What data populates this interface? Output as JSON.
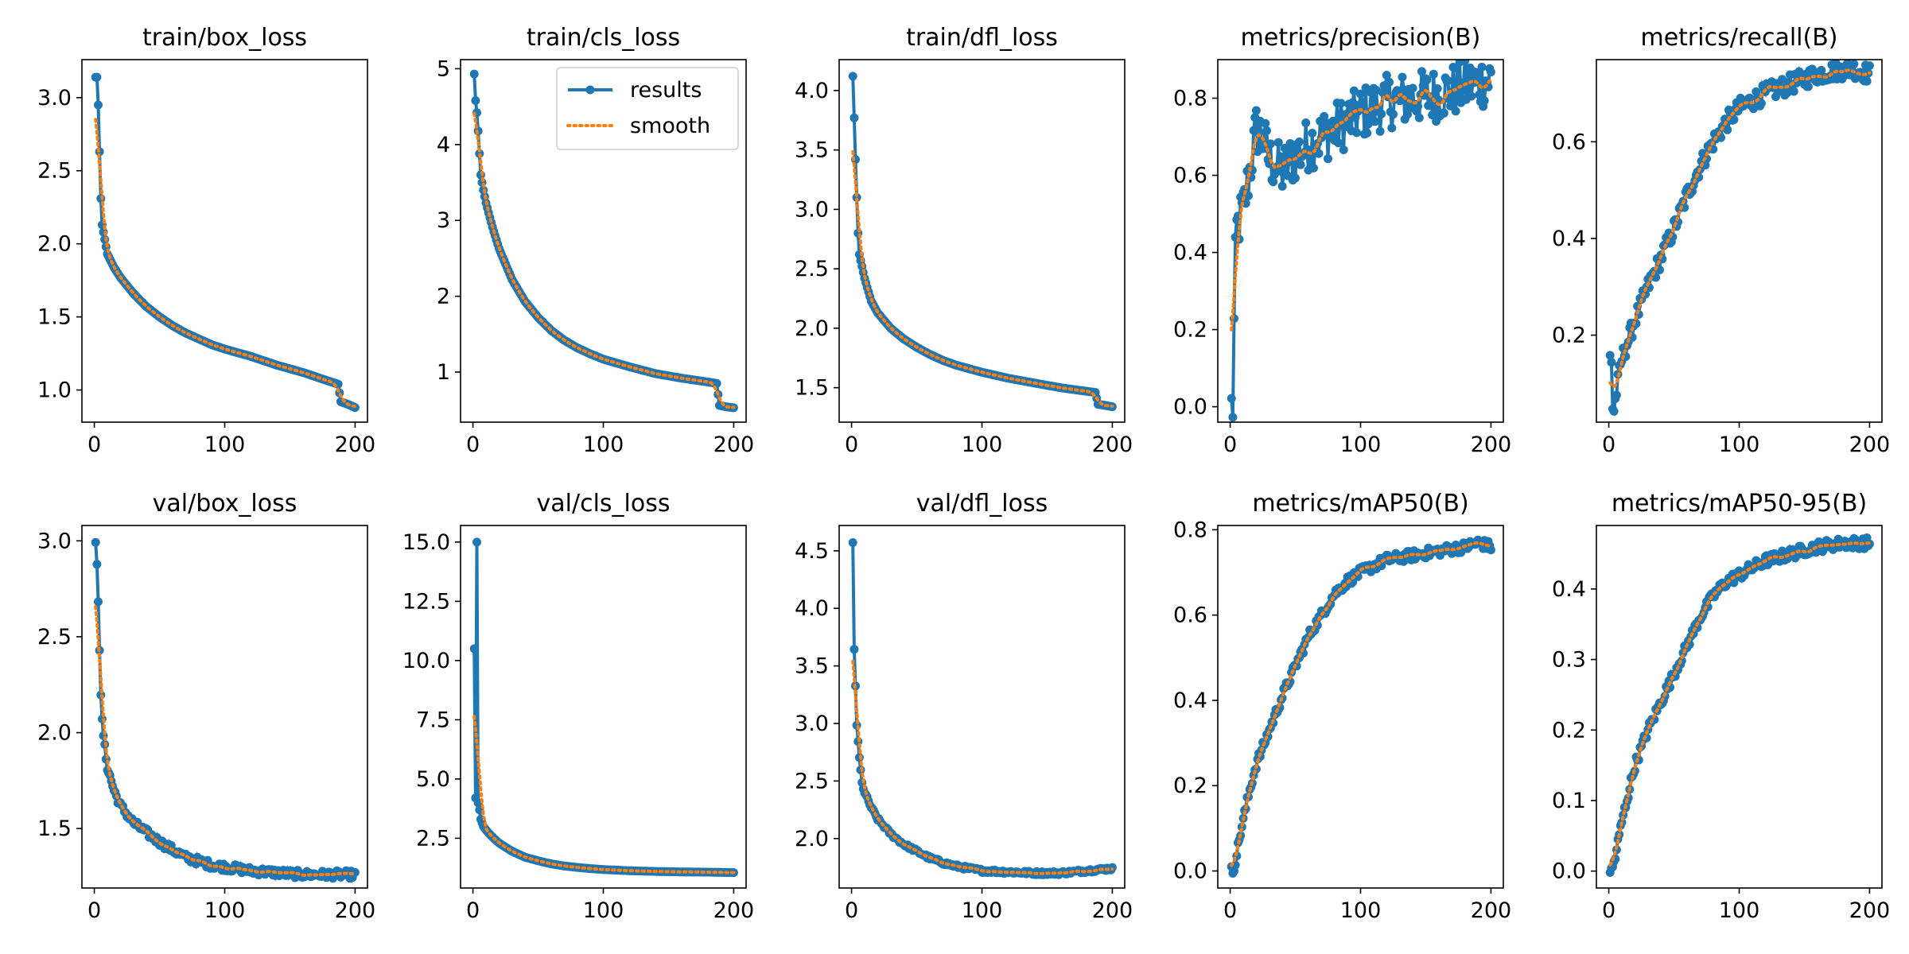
{
  "colors": {
    "results": "#1f77b4",
    "smooth": "#ff7f0e",
    "axes": "#000000",
    "background": "#ffffff"
  },
  "legend": {
    "entries": [
      "results",
      "smooth"
    ],
    "placement": "upper-right of panel 2"
  },
  "chart_data": [
    {
      "type": "line",
      "title": "train/box_loss",
      "xlabel": "",
      "ylabel": "",
      "xlim": [
        -9.5,
        209.5
      ],
      "ylim": [
        0.78,
        3.26
      ],
      "x_ticks": [
        0,
        100,
        200
      ],
      "y_ticks": [
        1.0,
        1.5,
        2.0,
        2.5,
        3.0
      ],
      "y_tick_labels": [
        "1.0",
        "1.5",
        "2.0",
        "2.5",
        "3.0"
      ],
      "grid": false,
      "anchors": [
        [
          1,
          3.14
        ],
        [
          2,
          3.14
        ],
        [
          3,
          2.95
        ],
        [
          4,
          2.63
        ],
        [
          5,
          2.31
        ],
        [
          6,
          2.13
        ],
        [
          8,
          2.03
        ],
        [
          10,
          1.93
        ],
        [
          15,
          1.84
        ],
        [
          20,
          1.77
        ],
        [
          30,
          1.66
        ],
        [
          40,
          1.57
        ],
        [
          50,
          1.5
        ],
        [
          60,
          1.44
        ],
        [
          70,
          1.39
        ],
        [
          80,
          1.35
        ],
        [
          90,
          1.31
        ],
        [
          100,
          1.28
        ],
        [
          120,
          1.23
        ],
        [
          140,
          1.17
        ],
        [
          160,
          1.12
        ],
        [
          180,
          1.06
        ],
        [
          187,
          1.04
        ],
        [
          189,
          0.92
        ],
        [
          195,
          0.9
        ],
        [
          200,
          0.88
        ]
      ],
      "series": [
        {
          "name": "results",
          "x_range": [
            1,
            200
          ]
        },
        {
          "name": "smooth"
        }
      ]
    },
    {
      "type": "line",
      "title": "train/cls_loss",
      "xlabel": "",
      "ylabel": "",
      "xlim": [
        -9.5,
        209.5
      ],
      "ylim": [
        0.34,
        5.12
      ],
      "x_ticks": [
        0,
        100,
        200
      ],
      "y_ticks": [
        1,
        2,
        3,
        4,
        5
      ],
      "y_tick_labels": [
        "1",
        "2",
        "3",
        "4",
        "5"
      ],
      "grid": false,
      "anchors": [
        [
          1,
          4.93
        ],
        [
          2,
          4.58
        ],
        [
          3,
          4.42
        ],
        [
          4,
          4.18
        ],
        [
          5,
          3.88
        ],
        [
          6,
          3.6
        ],
        [
          8,
          3.4
        ],
        [
          10,
          3.23
        ],
        [
          15,
          2.91
        ],
        [
          20,
          2.63
        ],
        [
          30,
          2.22
        ],
        [
          40,
          1.93
        ],
        [
          50,
          1.72
        ],
        [
          60,
          1.55
        ],
        [
          70,
          1.42
        ],
        [
          80,
          1.32
        ],
        [
          90,
          1.24
        ],
        [
          100,
          1.17
        ],
        [
          120,
          1.07
        ],
        [
          140,
          0.98
        ],
        [
          160,
          0.92
        ],
        [
          180,
          0.87
        ],
        [
          187,
          0.85
        ],
        [
          189,
          0.56
        ],
        [
          195,
          0.54
        ],
        [
          200,
          0.53
        ]
      ],
      "series": [
        {
          "name": "results",
          "x_range": [
            1,
            200
          ]
        },
        {
          "name": "smooth"
        }
      ]
    },
    {
      "type": "line",
      "title": "train/dfl_loss",
      "xlabel": "",
      "ylabel": "",
      "xlim": [
        -9.5,
        209.5
      ],
      "ylim": [
        1.21,
        4.26
      ],
      "x_ticks": [
        0,
        100,
        200
      ],
      "y_ticks": [
        1.5,
        2.0,
        2.5,
        3.0,
        3.5,
        4.0
      ],
      "y_tick_labels": [
        "1.5",
        "2.0",
        "2.5",
        "3.0",
        "3.5",
        "4.0"
      ],
      "grid": false,
      "anchors": [
        [
          1,
          4.12
        ],
        [
          2,
          3.77
        ],
        [
          3,
          3.42
        ],
        [
          4,
          3.1
        ],
        [
          5,
          2.8
        ],
        [
          6,
          2.62
        ],
        [
          8,
          2.52
        ],
        [
          10,
          2.42
        ],
        [
          15,
          2.23
        ],
        [
          20,
          2.13
        ],
        [
          30,
          2.0
        ],
        [
          40,
          1.91
        ],
        [
          50,
          1.84
        ],
        [
          60,
          1.78
        ],
        [
          70,
          1.73
        ],
        [
          80,
          1.69
        ],
        [
          90,
          1.66
        ],
        [
          100,
          1.63
        ],
        [
          120,
          1.58
        ],
        [
          140,
          1.54
        ],
        [
          160,
          1.5
        ],
        [
          180,
          1.47
        ],
        [
          187,
          1.46
        ],
        [
          189,
          1.36
        ],
        [
          195,
          1.35
        ],
        [
          200,
          1.34
        ]
      ],
      "series": [
        {
          "name": "results",
          "x_range": [
            1,
            200
          ]
        },
        {
          "name": "smooth"
        }
      ]
    },
    {
      "type": "line",
      "title": "metrics/precision(B)",
      "xlabel": "",
      "ylabel": "",
      "xlim": [
        -9.5,
        209.5
      ],
      "ylim": [
        -0.04,
        0.9
      ],
      "x_ticks": [
        0,
        100,
        200
      ],
      "y_ticks": [
        0.0,
        0.2,
        0.4,
        0.6,
        0.8
      ],
      "y_tick_labels": [
        "0.0",
        "0.2",
        "0.4",
        "0.6",
        "0.8"
      ],
      "grid": false,
      "anchors": [
        [
          1,
          0.0
        ],
        [
          2,
          0.0
        ],
        [
          3,
          0.21
        ],
        [
          4,
          0.37
        ],
        [
          5,
          0.46
        ],
        [
          7,
          0.48
        ],
        [
          10,
          0.51
        ],
        [
          15,
          0.61
        ],
        [
          20,
          0.72
        ],
        [
          25,
          0.7
        ],
        [
          30,
          0.64
        ],
        [
          40,
          0.61
        ],
        [
          50,
          0.65
        ],
        [
          60,
          0.68
        ],
        [
          70,
          0.7
        ],
        [
          80,
          0.72
        ],
        [
          90,
          0.74
        ],
        [
          100,
          0.76
        ],
        [
          120,
          0.79
        ],
        [
          140,
          0.8
        ],
        [
          160,
          0.81
        ],
        [
          180,
          0.83
        ],
        [
          200,
          0.85
        ]
      ],
      "noise": 0.07,
      "series": [
        {
          "name": "results",
          "x_range": [
            1,
            200
          ]
        },
        {
          "name": "smooth"
        }
      ]
    },
    {
      "type": "line",
      "title": "metrics/recall(B)",
      "xlabel": "",
      "ylabel": "",
      "xlim": [
        -9.5,
        209.5
      ],
      "ylim": [
        0.02,
        0.77
      ],
      "x_ticks": [
        0,
        100,
        200
      ],
      "y_ticks": [
        0.2,
        0.4,
        0.6
      ],
      "y_tick_labels": [
        "0.2",
        "0.4",
        "0.6"
      ],
      "grid": false,
      "anchors": [
        [
          1,
          0.155
        ],
        [
          2,
          0.15
        ],
        [
          3,
          0.05
        ],
        [
          4,
          0.045
        ],
        [
          5,
          0.065
        ],
        [
          8,
          0.12
        ],
        [
          10,
          0.15
        ],
        [
          15,
          0.19
        ],
        [
          20,
          0.23
        ],
        [
          30,
          0.3
        ],
        [
          40,
          0.36
        ],
        [
          50,
          0.42
        ],
        [
          60,
          0.49
        ],
        [
          70,
          0.55
        ],
        [
          80,
          0.6
        ],
        [
          90,
          0.64
        ],
        [
          100,
          0.67
        ],
        [
          120,
          0.7
        ],
        [
          140,
          0.72
        ],
        [
          160,
          0.74
        ],
        [
          180,
          0.75
        ],
        [
          190,
          0.75
        ],
        [
          200,
          0.74
        ]
      ],
      "noise": 0.02,
      "series": [
        {
          "name": "results",
          "x_range": [
            1,
            200
          ]
        },
        {
          "name": "smooth"
        }
      ]
    },
    {
      "type": "line",
      "title": "val/box_loss",
      "xlabel": "",
      "ylabel": "",
      "xlim": [
        -9.5,
        209.5
      ],
      "ylim": [
        1.19,
        3.08
      ],
      "x_ticks": [
        0,
        100,
        200
      ],
      "y_ticks": [
        1.5,
        2.0,
        2.5,
        3.0
      ],
      "y_tick_labels": [
        "1.5",
        "2.0",
        "2.5",
        "3.0"
      ],
      "grid": false,
      "anchors": [
        [
          1,
          2.98
        ],
        [
          2,
          2.89
        ],
        [
          3,
          2.7
        ],
        [
          4,
          2.44
        ],
        [
          5,
          2.18
        ],
        [
          6,
          2.06
        ],
        [
          8,
          1.92
        ],
        [
          10,
          1.82
        ],
        [
          15,
          1.7
        ],
        [
          20,
          1.62
        ],
        [
          30,
          1.53
        ],
        [
          40,
          1.48
        ],
        [
          50,
          1.43
        ],
        [
          60,
          1.39
        ],
        [
          70,
          1.35
        ],
        [
          80,
          1.33
        ],
        [
          90,
          1.31
        ],
        [
          100,
          1.3
        ],
        [
          120,
          1.28
        ],
        [
          140,
          1.27
        ],
        [
          160,
          1.26
        ],
        [
          180,
          1.26
        ],
        [
          200,
          1.26
        ]
      ],
      "noise": 0.02,
      "series": [
        {
          "name": "results",
          "x_range": [
            1,
            200
          ]
        },
        {
          "name": "smooth"
        }
      ]
    },
    {
      "type": "line",
      "title": "val/cls_loss",
      "xlabel": "",
      "ylabel": "",
      "xlim": [
        -9.5,
        209.5
      ],
      "ylim": [
        0.4,
        15.7
      ],
      "x_ticks": [
        0,
        100,
        200
      ],
      "y_ticks": [
        2.5,
        5.0,
        7.5,
        10.0,
        12.5,
        15.0
      ],
      "y_tick_labels": [
        "2.5",
        "5.0",
        "7.5",
        "10.0",
        "12.5",
        "15.0"
      ],
      "grid": false,
      "anchors": [
        [
          1,
          10.5
        ],
        [
          2,
          4.2
        ],
        [
          3,
          15.0
        ],
        [
          4,
          4.0
        ],
        [
          5,
          3.7
        ],
        [
          6,
          3.3
        ],
        [
          8,
          3.0
        ],
        [
          10,
          2.85
        ],
        [
          15,
          2.55
        ],
        [
          20,
          2.3
        ],
        [
          30,
          1.95
        ],
        [
          40,
          1.7
        ],
        [
          50,
          1.55
        ],
        [
          60,
          1.42
        ],
        [
          70,
          1.33
        ],
        [
          80,
          1.27
        ],
        [
          90,
          1.22
        ],
        [
          100,
          1.18
        ],
        [
          120,
          1.13
        ],
        [
          140,
          1.1
        ],
        [
          160,
          1.08
        ],
        [
          180,
          1.07
        ],
        [
          200,
          1.05
        ]
      ],
      "series": [
        {
          "name": "results",
          "x_range": [
            1,
            200
          ]
        },
        {
          "name": "smooth"
        }
      ]
    },
    {
      "type": "line",
      "title": "val/dfl_loss",
      "xlabel": "",
      "ylabel": "",
      "xlim": [
        -9.5,
        209.5
      ],
      "ylim": [
        1.57,
        4.72
      ],
      "x_ticks": [
        0,
        100,
        200
      ],
      "y_ticks": [
        2.0,
        2.5,
        3.0,
        3.5,
        4.0,
        4.5
      ],
      "y_tick_labels": [
        "2.0",
        "2.5",
        "3.0",
        "3.5",
        "4.0",
        "4.5"
      ],
      "grid": false,
      "anchors": [
        [
          1,
          4.56
        ],
        [
          2,
          3.64
        ],
        [
          3,
          3.33
        ],
        [
          4,
          2.99
        ],
        [
          5,
          2.83
        ],
        [
          6,
          2.7
        ],
        [
          8,
          2.48
        ],
        [
          10,
          2.4
        ],
        [
          15,
          2.27
        ],
        [
          20,
          2.17
        ],
        [
          30,
          2.04
        ],
        [
          40,
          1.95
        ],
        [
          50,
          1.89
        ],
        [
          60,
          1.83
        ],
        [
          70,
          1.79
        ],
        [
          80,
          1.76
        ],
        [
          90,
          1.74
        ],
        [
          100,
          1.72
        ],
        [
          120,
          1.71
        ],
        [
          140,
          1.7
        ],
        [
          160,
          1.7
        ],
        [
          180,
          1.72
        ],
        [
          200,
          1.74
        ]
      ],
      "noise": 0.015,
      "series": [
        {
          "name": "results",
          "x_range": [
            1,
            200
          ]
        },
        {
          "name": "smooth"
        }
      ]
    },
    {
      "type": "line",
      "title": "metrics/mAP50(B)",
      "xlabel": "",
      "ylabel": "",
      "xlim": [
        -9.5,
        209.5
      ],
      "ylim": [
        -0.04,
        0.81
      ],
      "x_ticks": [
        0,
        100,
        200
      ],
      "y_ticks": [
        0.0,
        0.2,
        0.4,
        0.6,
        0.8
      ],
      "y_tick_labels": [
        "0.0",
        "0.2",
        "0.4",
        "0.6",
        "0.8"
      ],
      "grid": false,
      "anchors": [
        [
          1,
          0.0
        ],
        [
          2,
          0.0
        ],
        [
          3,
          0.01
        ],
        [
          5,
          0.04
        ],
        [
          8,
          0.09
        ],
        [
          10,
          0.12
        ],
        [
          15,
          0.19
        ],
        [
          20,
          0.25
        ],
        [
          30,
          0.33
        ],
        [
          40,
          0.41
        ],
        [
          50,
          0.48
        ],
        [
          60,
          0.55
        ],
        [
          70,
          0.6
        ],
        [
          80,
          0.65
        ],
        [
          90,
          0.68
        ],
        [
          100,
          0.7
        ],
        [
          120,
          0.73
        ],
        [
          140,
          0.74
        ],
        [
          160,
          0.75
        ],
        [
          180,
          0.76
        ],
        [
          190,
          0.77
        ],
        [
          200,
          0.76
        ]
      ],
      "noise": 0.012,
      "series": [
        {
          "name": "results",
          "x_range": [
            1,
            200
          ]
        },
        {
          "name": "smooth"
        }
      ]
    },
    {
      "type": "line",
      "title": "metrics/mAP50-95(B)",
      "xlabel": "",
      "ylabel": "",
      "xlim": [
        -9.5,
        209.5
      ],
      "ylim": [
        -0.024,
        0.49
      ],
      "x_ticks": [
        0,
        100,
        200
      ],
      "y_ticks": [
        0.0,
        0.1,
        0.2,
        0.3,
        0.4
      ],
      "y_tick_labels": [
        "0.0",
        "0.1",
        "0.2",
        "0.3",
        "0.4"
      ],
      "grid": false,
      "anchors": [
        [
          1,
          0.0
        ],
        [
          2,
          0.0
        ],
        [
          3,
          0.005
        ],
        [
          5,
          0.02
        ],
        [
          8,
          0.05
        ],
        [
          10,
          0.07
        ],
        [
          15,
          0.11
        ],
        [
          20,
          0.15
        ],
        [
          30,
          0.2
        ],
        [
          40,
          0.24
        ],
        [
          50,
          0.28
        ],
        [
          60,
          0.32
        ],
        [
          70,
          0.36
        ],
        [
          80,
          0.39
        ],
        [
          90,
          0.41
        ],
        [
          100,
          0.42
        ],
        [
          120,
          0.44
        ],
        [
          140,
          0.45
        ],
        [
          160,
          0.46
        ],
        [
          180,
          0.465
        ],
        [
          200,
          0.465
        ]
      ],
      "noise": 0.008,
      "series": [
        {
          "name": "results",
          "x_range": [
            1,
            200
          ]
        },
        {
          "name": "smooth"
        }
      ]
    }
  ]
}
